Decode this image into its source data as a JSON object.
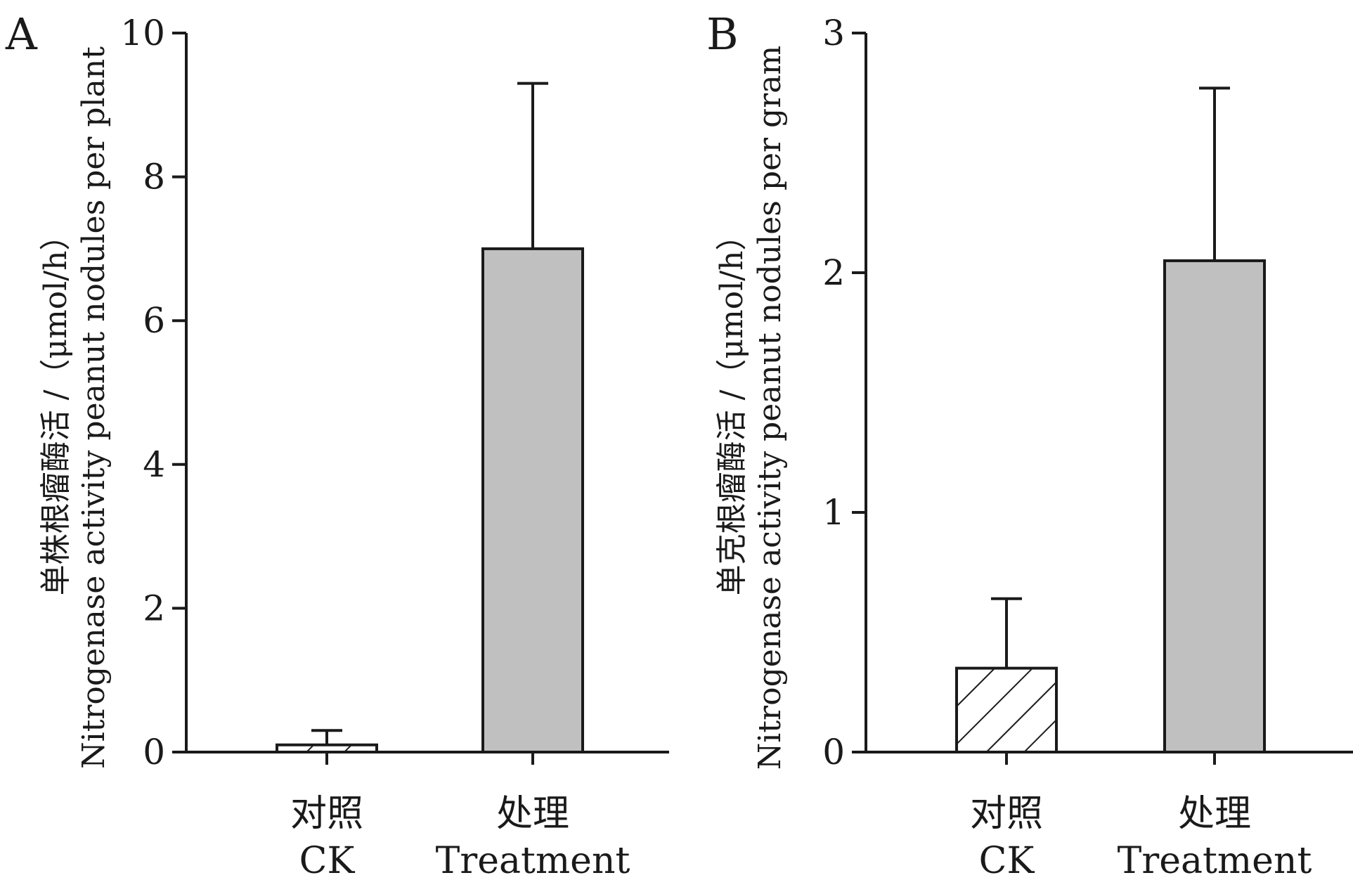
{
  "chart_data": [
    {
      "panel": "A",
      "type": "bar",
      "categories": [
        {
          "line1": "对照",
          "line2": "CK"
        },
        {
          "line1": "处理",
          "line2": "Treatment"
        }
      ],
      "values": [
        0.1,
        7.0
      ],
      "error_upper": [
        0.3,
        9.3
      ],
      "ylabel_line1": "单株根瘤酶活 /（μmol/h）",
      "ylabel_line2": "Nitrogenase activity peanut nodules per plant",
      "ylim": [
        0,
        10
      ],
      "yticks": [
        0,
        2,
        4,
        6,
        8,
        10
      ],
      "fills": [
        "hatch",
        "#c0c0c0"
      ]
    },
    {
      "panel": "B",
      "type": "bar",
      "categories": [
        {
          "line1": "对照",
          "line2": "CK"
        },
        {
          "line1": "处理",
          "line2": "Treatment"
        }
      ],
      "values": [
        0.35,
        2.05
      ],
      "error_upper": [
        0.64,
        2.77
      ],
      "ylabel_line1": "单克根瘤酶活 /（μmol/h）",
      "ylabel_line2": "Nitrogenase activity peanut nodules per gram",
      "ylim": [
        0,
        3
      ],
      "yticks": [
        0,
        1,
        2,
        3
      ],
      "fills": [
        "hatch",
        "#c0c0c0"
      ]
    }
  ]
}
